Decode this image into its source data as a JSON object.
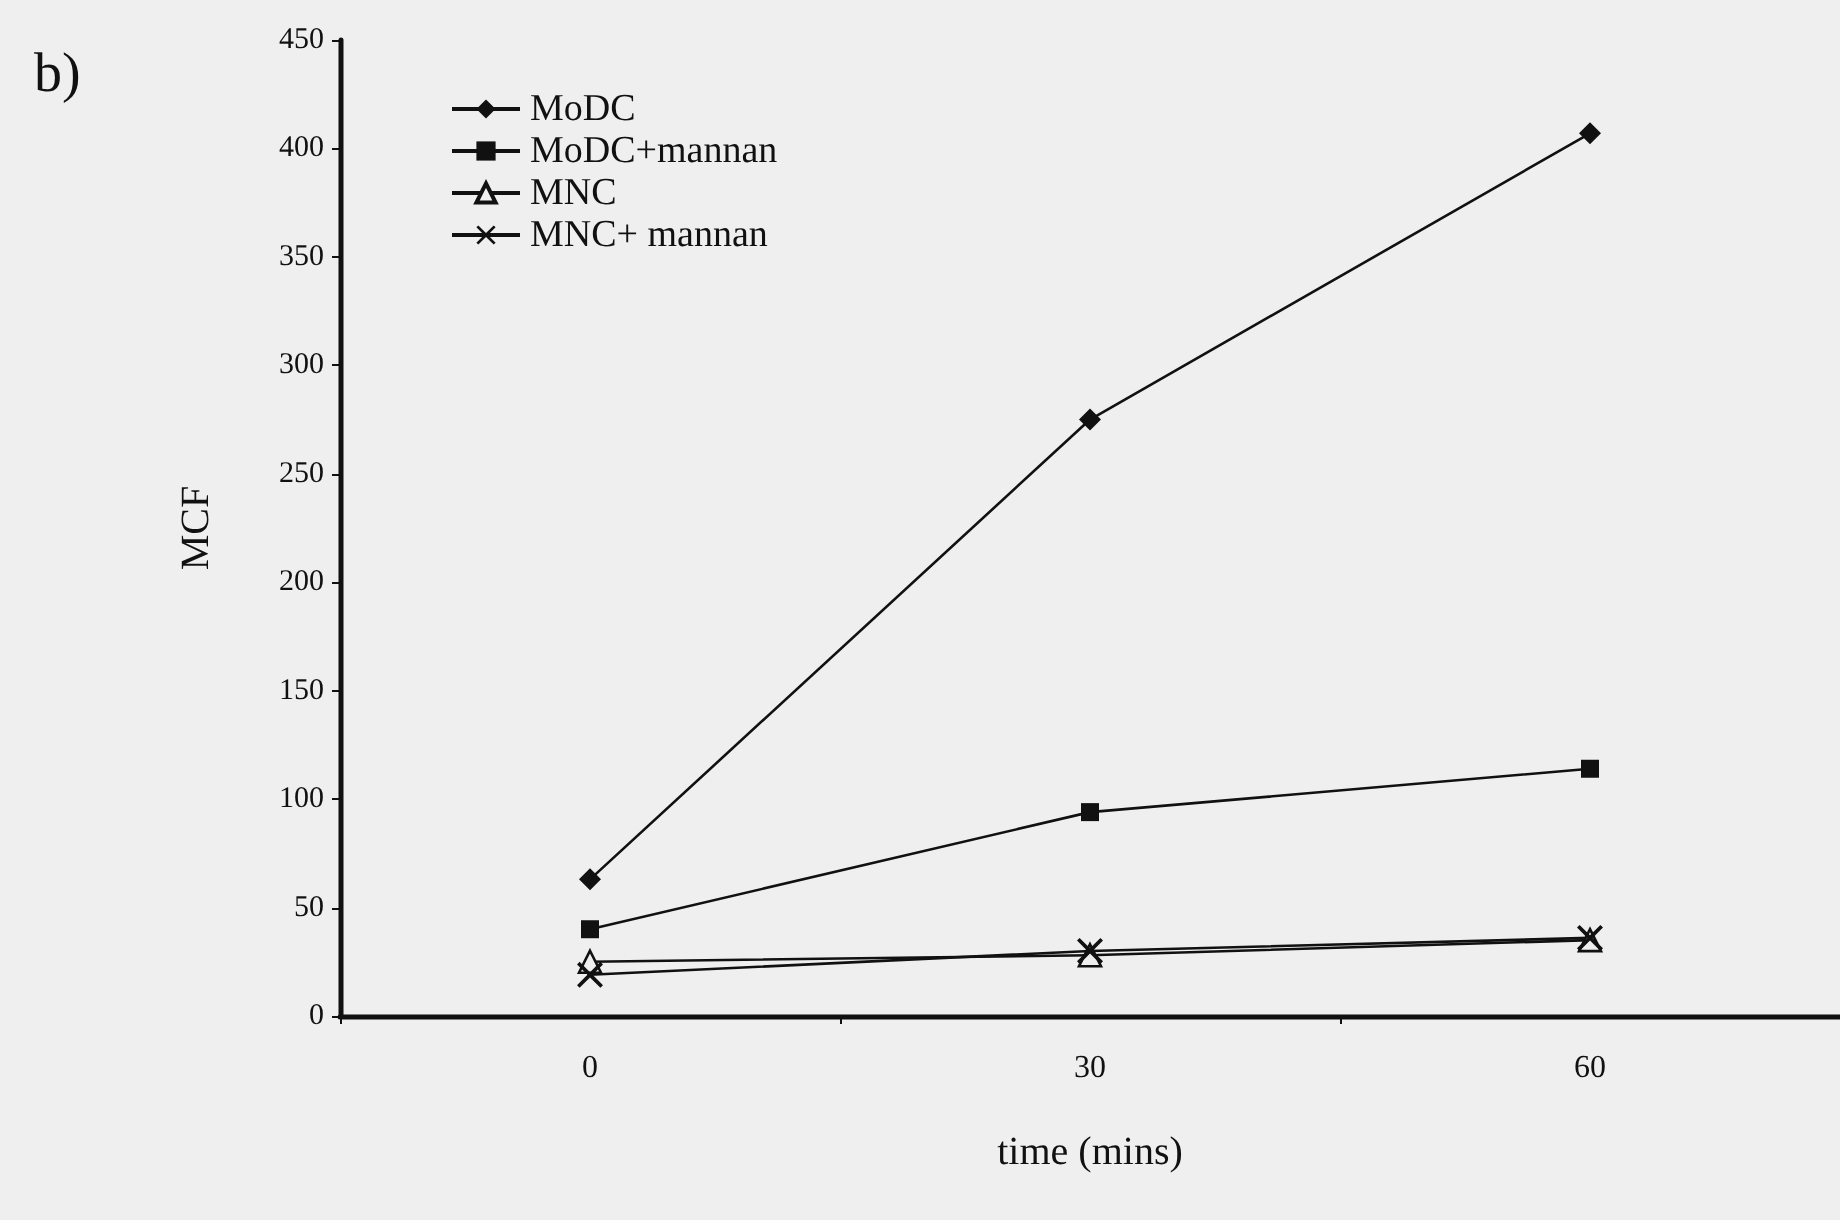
{
  "chart_data": {
    "type": "line",
    "title": "b)",
    "xlabel": "time (mins)",
    "ylabel": "MCF",
    "categories": [
      "0",
      "30",
      "60"
    ],
    "series": [
      {
        "name": "MoDC",
        "color": "#111111",
        "marker": "diamond",
        "values": [
          63,
          275,
          407
        ]
      },
      {
        "name": "MoDC+mannan",
        "color": "#111111",
        "marker": "square",
        "values": [
          40,
          94,
          114
        ]
      },
      {
        "name": "MNC",
        "color": "#111111",
        "marker": "triangle",
        "values": [
          25,
          28,
          35
        ]
      },
      {
        "name": "MNC+ mannan",
        "color": "#111111",
        "marker": "cross",
        "values": [
          19,
          30,
          36
        ]
      }
    ],
    "ylim": [
      0,
      450
    ],
    "yticks": [
      0,
      50,
      100,
      150,
      200,
      250,
      300,
      350,
      400,
      450
    ],
    "grid": false,
    "legend": "top left",
    "line_style": "solid"
  }
}
